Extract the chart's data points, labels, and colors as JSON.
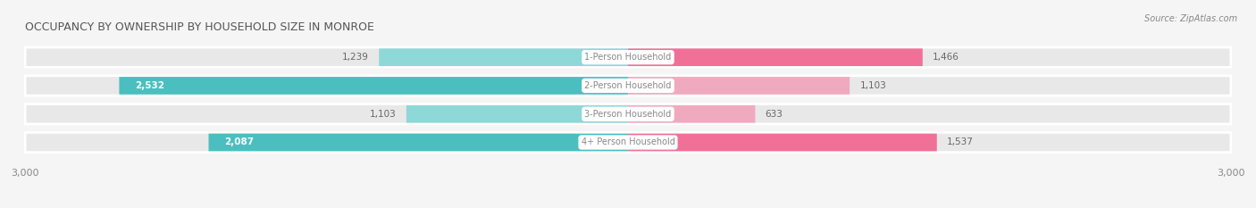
{
  "title": "OCCUPANCY BY OWNERSHIP BY HOUSEHOLD SIZE IN MONROE",
  "source": "Source: ZipAtlas.com",
  "categories": [
    "1-Person Household",
    "2-Person Household",
    "3-Person Household",
    "4+ Person Household"
  ],
  "owner_values": [
    1239,
    2532,
    1103,
    2087
  ],
  "renter_values": [
    1466,
    1103,
    633,
    1537
  ],
  "max_val": 3000,
  "owner_color_strong": "#4BBFBF",
  "owner_color_light": "#8ED8D8",
  "renter_color_strong": "#F07098",
  "renter_color_light": "#F0AABF",
  "row_bg_color": "#E8E8E8",
  "bg_color": "#F5F5F5",
  "label_color": "#888888",
  "value_color_dark": "#666666",
  "value_color_white": "#FFFFFF",
  "title_color": "#555555",
  "figsize": [
    14.06,
    2.33
  ],
  "dpi": 100
}
